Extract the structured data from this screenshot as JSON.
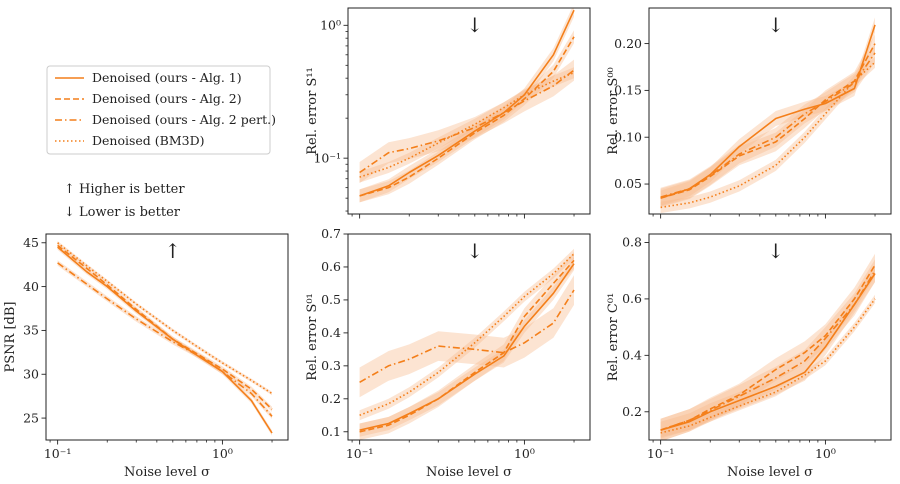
{
  "figure": {
    "color": "#f47f1a",
    "band_color": "#f8b98a",
    "legend": {
      "entries": [
        {
          "label": "Denoised (ours - Alg. 1)",
          "style": "solid"
        },
        {
          "label": "Denoised (ours - Alg. 2)",
          "style": "dashed"
        },
        {
          "label": "Denoised (ours - Alg. 2 pert.)",
          "style": "dashdot"
        },
        {
          "label": "Denoised (BM3D)",
          "style": "dotted"
        }
      ]
    },
    "annotations": {
      "higher_better": "↑ Higher is better",
      "lower_better": "↓ Lower is better",
      "higher_color": "#e8343a",
      "lower_color": "#2a9a3a"
    }
  },
  "chart_data": [
    {
      "id": "psnr",
      "type": "line",
      "xscale": "log",
      "xlim": [
        0.085,
        2.5
      ],
      "yscale": "linear",
      "ylim": [
        22.5,
        46
      ],
      "yticks": [
        25,
        30,
        35,
        40,
        45
      ],
      "ytick_labels": [
        "25",
        "30",
        "35",
        "40",
        "45"
      ],
      "xlabel": "Noise level σ",
      "ylabel": "PSNR [dB]",
      "arrow": "↑",
      "arrow_color": "#e8343a",
      "x": [
        0.1,
        0.15,
        0.2,
        0.3,
        0.5,
        0.75,
        1.0,
        1.5,
        2.0
      ],
      "series": [
        {
          "name": "Denoised (ours - Alg. 1)",
          "style": "solid",
          "values": [
            44.5,
            41.7,
            40.0,
            37.2,
            34.0,
            31.8,
            30.3,
            27.0,
            23.3
          ],
          "band": 0.3
        },
        {
          "name": "Denoised (ours - Alg. 2)",
          "style": "dashed",
          "values": [
            44.7,
            42.1,
            40.2,
            37.4,
            34.0,
            32.0,
            30.6,
            28.3,
            26.0
          ],
          "band": 0.3
        },
        {
          "name": "Denoised (ours - Alg. 2 pert.)",
          "style": "dashdot",
          "values": [
            42.7,
            40.3,
            38.6,
            36.3,
            33.7,
            31.9,
            30.3,
            27.8,
            25.2
          ],
          "band": 0.3
        },
        {
          "name": "Denoised (BM3D)",
          "style": "dotted",
          "values": [
            45.0,
            42.4,
            40.6,
            38.0,
            35.0,
            32.8,
            31.3,
            29.3,
            27.8
          ],
          "band": 0.2
        }
      ]
    },
    {
      "id": "s11",
      "type": "line",
      "xscale": "log",
      "xlim": [
        0.085,
        2.5
      ],
      "yscale": "log",
      "ylim": [
        0.038,
        1.35
      ],
      "yticks": [
        0.1,
        1.0
      ],
      "ytick_labels": [
        "10⁻¹",
        "10⁰"
      ],
      "xlabel": "",
      "ylabel": "Rel. error S¹¹",
      "arrow": "↓",
      "arrow_color": "#2a9a3a",
      "x": [
        0.1,
        0.15,
        0.2,
        0.3,
        0.5,
        0.75,
        1.0,
        1.5,
        2.0
      ],
      "series": [
        {
          "name": "Denoised (ours - Alg. 1)",
          "style": "solid",
          "values": [
            0.052,
            0.062,
            0.078,
            0.105,
            0.16,
            0.22,
            0.3,
            0.6,
            1.3
          ],
          "band": 0.12
        },
        {
          "name": "Denoised (ours - Alg. 2)",
          "style": "dashed",
          "values": [
            0.052,
            0.06,
            0.072,
            0.1,
            0.155,
            0.21,
            0.28,
            0.45,
            0.82
          ],
          "band": 0.12
        },
        {
          "name": "Denoised (ours - Alg. 2 pert.)",
          "style": "dashdot",
          "values": [
            0.078,
            0.11,
            0.118,
            0.135,
            0.17,
            0.22,
            0.27,
            0.35,
            0.46
          ],
          "band": 0.2
        },
        {
          "name": "Denoised (BM3D)",
          "style": "dotted",
          "values": [
            0.072,
            0.085,
            0.1,
            0.13,
            0.18,
            0.24,
            0.3,
            0.38,
            0.44
          ],
          "band": 0.1
        }
      ]
    },
    {
      "id": "s00",
      "type": "line",
      "xscale": "log",
      "xlim": [
        0.085,
        2.5
      ],
      "yscale": "linear",
      "ylim": [
        0.018,
        0.238
      ],
      "yticks": [
        0.05,
        0.1,
        0.15,
        0.2
      ],
      "ytick_labels": [
        "0.05",
        "0.10",
        "0.15",
        "0.20"
      ],
      "xlabel": "",
      "ylabel": "Rel. error S⁰⁰",
      "arrow": "↓",
      "arrow_color": "#2a9a3a",
      "x": [
        0.1,
        0.15,
        0.2,
        0.3,
        0.5,
        0.75,
        1.0,
        1.5,
        2.0
      ],
      "series": [
        {
          "name": "Denoised (ours - Alg. 1)",
          "style": "solid",
          "values": [
            0.035,
            0.045,
            0.06,
            0.09,
            0.12,
            0.13,
            0.136,
            0.152,
            0.22
          ],
          "band": 0.008
        },
        {
          "name": "Denoised (ours - Alg. 2)",
          "style": "dashed",
          "values": [
            0.035,
            0.044,
            0.058,
            0.08,
            0.095,
            0.12,
            0.14,
            0.16,
            0.2
          ],
          "band": 0.01
        },
        {
          "name": "Denoised (ours - Alg. 2 pert.)",
          "style": "dashdot",
          "values": [
            0.036,
            0.045,
            0.059,
            0.082,
            0.1,
            0.125,
            0.138,
            0.158,
            0.19
          ],
          "band": 0.01
        },
        {
          "name": "Denoised (BM3D)",
          "style": "dotted",
          "values": [
            0.025,
            0.03,
            0.036,
            0.048,
            0.07,
            0.1,
            0.125,
            0.16,
            0.18
          ],
          "band": 0.006
        }
      ]
    },
    {
      "id": "s01",
      "type": "line",
      "xscale": "log",
      "xlim": [
        0.085,
        2.5
      ],
      "yscale": "linear",
      "ylim": [
        0.075,
        0.7
      ],
      "yticks": [
        0.1,
        0.2,
        0.3,
        0.4,
        0.5,
        0.6,
        0.7
      ],
      "ytick_labels": [
        "0.1",
        "0.2",
        "0.3",
        "0.4",
        "0.5",
        "0.6",
        "0.7"
      ],
      "xlabel": "Noise level σ",
      "ylabel": "Rel. error S⁰¹",
      "arrow": "↓",
      "arrow_color": "#2a9a3a",
      "x": [
        0.1,
        0.15,
        0.2,
        0.3,
        0.5,
        0.75,
        1.0,
        1.5,
        2.0
      ],
      "series": [
        {
          "name": "Denoised (ours - Alg. 1)",
          "style": "solid",
          "values": [
            0.105,
            0.125,
            0.155,
            0.2,
            0.275,
            0.33,
            0.42,
            0.52,
            0.61
          ],
          "band": 0.02
        },
        {
          "name": "Denoised (ours - Alg. 2)",
          "style": "dashed",
          "values": [
            0.1,
            0.12,
            0.15,
            0.2,
            0.28,
            0.34,
            0.45,
            0.55,
            0.62
          ],
          "band": 0.025
        },
        {
          "name": "Denoised (ours - Alg. 2 pert.)",
          "style": "dashdot",
          "values": [
            0.25,
            0.3,
            0.32,
            0.36,
            0.35,
            0.34,
            0.37,
            0.43,
            0.53
          ],
          "band": 0.045
        },
        {
          "name": "Denoised (BM3D)",
          "style": "dotted",
          "values": [
            0.15,
            0.185,
            0.22,
            0.28,
            0.37,
            0.45,
            0.51,
            0.58,
            0.64
          ],
          "band": 0.015
        }
      ]
    },
    {
      "id": "c01",
      "type": "line",
      "xscale": "log",
      "xlim": [
        0.085,
        2.5
      ],
      "yscale": "linear",
      "ylim": [
        0.1,
        0.83
      ],
      "yticks": [
        0.2,
        0.4,
        0.6,
        0.8
      ],
      "ytick_labels": [
        "0.2",
        "0.4",
        "0.6",
        "0.8"
      ],
      "xlabel": "Noise level σ",
      "ylabel": "Rel. error C⁰¹",
      "arrow": "↓",
      "arrow_color": "#2a9a3a",
      "x": [
        0.1,
        0.15,
        0.2,
        0.3,
        0.5,
        0.75,
        1.0,
        1.5,
        2.0
      ],
      "series": [
        {
          "name": "Denoised (ours - Alg. 1)",
          "style": "solid",
          "values": [
            0.135,
            0.165,
            0.2,
            0.24,
            0.29,
            0.34,
            0.43,
            0.58,
            0.69
          ],
          "band": 0.03
        },
        {
          "name": "Denoised (ours - Alg. 2)",
          "style": "dashed",
          "values": [
            0.135,
            0.17,
            0.21,
            0.26,
            0.35,
            0.41,
            0.47,
            0.6,
            0.72
          ],
          "band": 0.04
        },
        {
          "name": "Denoised (ours - Alg. 2 pert.)",
          "style": "dashdot",
          "values": [
            0.135,
            0.17,
            0.205,
            0.255,
            0.32,
            0.38,
            0.46,
            0.58,
            0.7
          ],
          "band": 0.04
        },
        {
          "name": "Denoised (BM3D)",
          "style": "dotted",
          "values": [
            0.125,
            0.15,
            0.18,
            0.22,
            0.27,
            0.33,
            0.38,
            0.5,
            0.6
          ],
          "band": 0.015
        }
      ]
    }
  ]
}
